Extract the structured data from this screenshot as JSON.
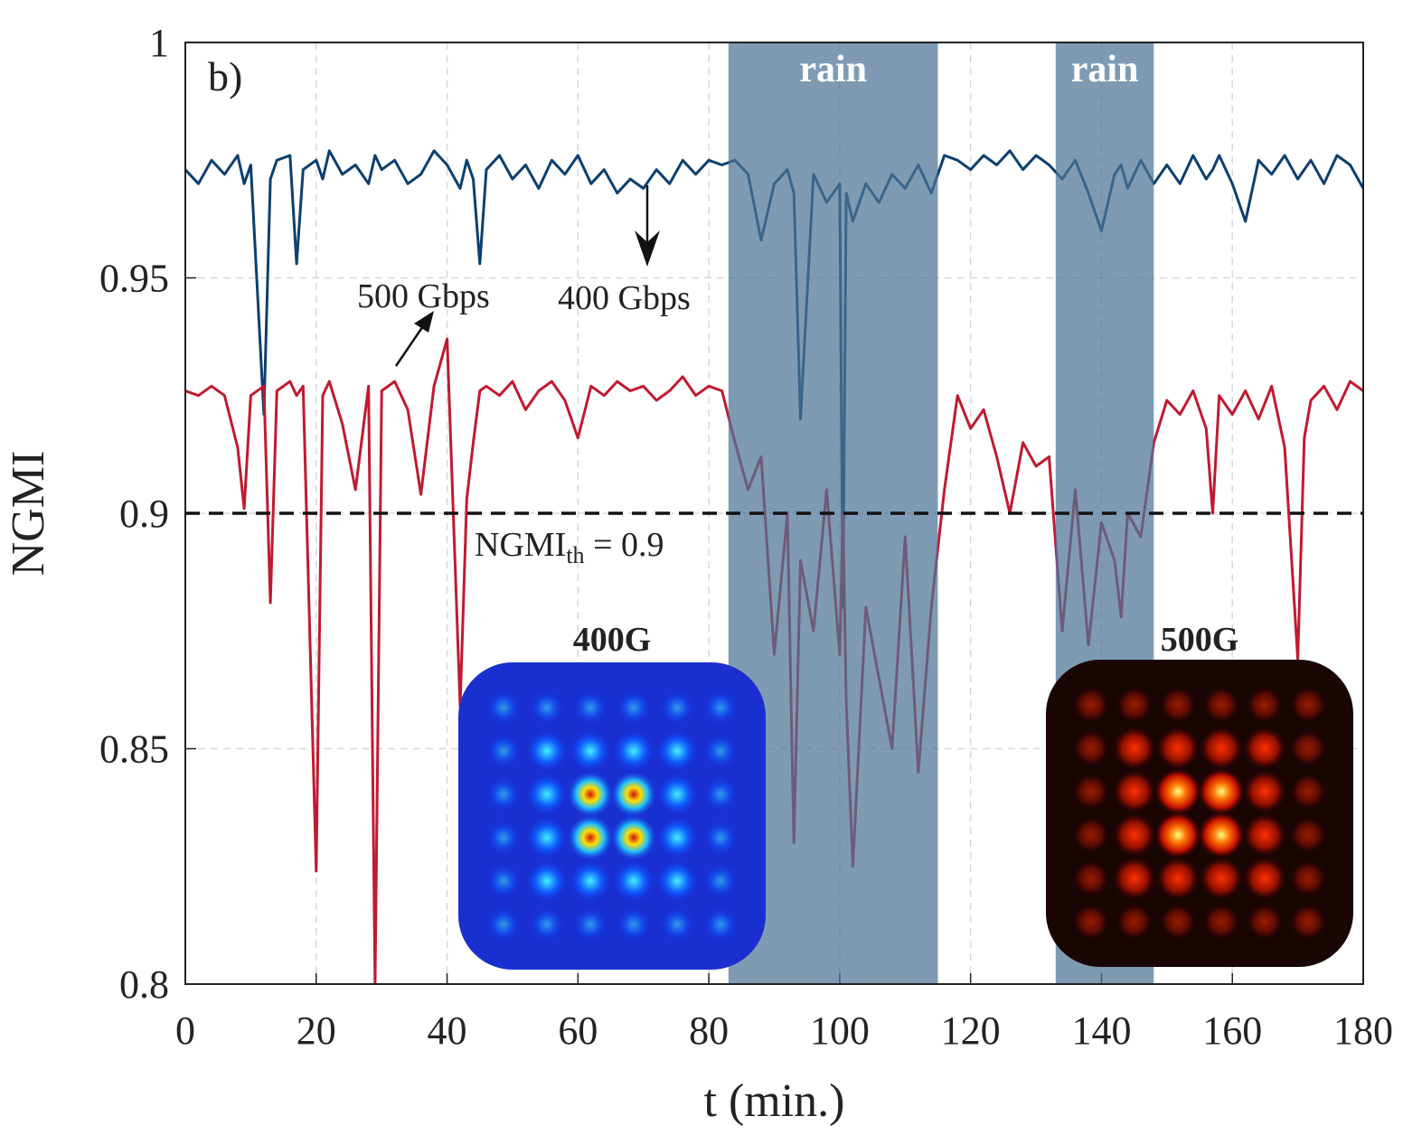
{
  "chart_data": {
    "type": "line",
    "panel_label": "b)",
    "xlabel": "t (min.)",
    "ylabel": "NGMI",
    "xlim": [
      0,
      180
    ],
    "xticks": [
      0,
      20,
      40,
      60,
      80,
      100,
      120,
      140,
      160,
      180
    ],
    "ylim": [
      0.8,
      1
    ],
    "yticks": [
      0.8,
      0.85,
      0.9,
      0.95,
      1
    ],
    "grid": true,
    "x": [
      0,
      2,
      4,
      6,
      8,
      9,
      10,
      12,
      13,
      14,
      16,
      17,
      18,
      20,
      21,
      22,
      24,
      26,
      28,
      29,
      30,
      32,
      34,
      36,
      38,
      40,
      42,
      43,
      44,
      45,
      46,
      48,
      50,
      52,
      54,
      56,
      58,
      60,
      62,
      64,
      66,
      68,
      70,
      72,
      74,
      76,
      78,
      80,
      82,
      84,
      86,
      88,
      90,
      92,
      93,
      94,
      96,
      98,
      100,
      100.5,
      101,
      102,
      104,
      106,
      108,
      110,
      112,
      114,
      116,
      118,
      120,
      122,
      124,
      126,
      128,
      130,
      132,
      134,
      136,
      138,
      140,
      142,
      143,
      144,
      146,
      148,
      150,
      152,
      154,
      156,
      157,
      158,
      160,
      162,
      164,
      166,
      168,
      170,
      171,
      172,
      174,
      176,
      178,
      180
    ],
    "series": [
      {
        "name": "400 Gbps",
        "color": "#0c3f6e",
        "values": [
          0.973,
          0.97,
          0.975,
          0.972,
          0.976,
          0.97,
          0.974,
          0.921,
          0.971,
          0.975,
          0.976,
          0.953,
          0.973,
          0.975,
          0.971,
          0.977,
          0.972,
          0.974,
          0.97,
          0.976,
          0.973,
          0.975,
          0.97,
          0.972,
          0.977,
          0.974,
          0.969,
          0.975,
          0.971,
          0.953,
          0.973,
          0.976,
          0.971,
          0.974,
          0.969,
          0.975,
          0.972,
          0.976,
          0.97,
          0.973,
          0.968,
          0.971,
          0.969,
          0.973,
          0.97,
          0.975,
          0.972,
          0.975,
          0.974,
          0.975,
          0.972,
          0.958,
          0.97,
          0.973,
          0.968,
          0.92,
          0.972,
          0.966,
          0.97,
          0.88,
          0.968,
          0.962,
          0.97,
          0.966,
          0.972,
          0.969,
          0.974,
          0.968,
          0.976,
          0.975,
          0.973,
          0.976,
          0.974,
          0.977,
          0.973,
          0.976,
          0.974,
          0.971,
          0.975,
          0.968,
          0.96,
          0.972,
          0.974,
          0.969,
          0.975,
          0.97,
          0.974,
          0.97,
          0.976,
          0.971,
          0.973,
          0.976,
          0.97,
          0.962,
          0.975,
          0.972,
          0.976,
          0.971,
          0.973,
          0.975,
          0.97,
          0.976,
          0.974,
          0.969
        ]
      },
      {
        "name": "500 Gbps",
        "color": "#c01a30",
        "values": [
          0.926,
          0.925,
          0.927,
          0.925,
          0.914,
          0.901,
          0.925,
          0.927,
          0.881,
          0.926,
          0.928,
          0.925,
          0.927,
          0.824,
          0.925,
          0.928,
          0.919,
          0.905,
          0.927,
          0.8,
          0.926,
          0.928,
          0.922,
          0.904,
          0.927,
          0.937,
          0.859,
          0.903,
          0.915,
          0.926,
          0.927,
          0.925,
          0.928,
          0.922,
          0.926,
          0.928,
          0.924,
          0.916,
          0.927,
          0.925,
          0.928,
          0.926,
          0.927,
          0.924,
          0.926,
          0.929,
          0.925,
          0.927,
          0.926,
          0.915,
          0.905,
          0.912,
          0.87,
          0.9,
          0.83,
          0.89,
          0.875,
          0.905,
          0.87,
          0.9,
          0.86,
          0.825,
          0.88,
          0.865,
          0.85,
          0.895,
          0.845,
          0.88,
          0.905,
          0.925,
          0.918,
          0.922,
          0.912,
          0.9,
          0.915,
          0.91,
          0.912,
          0.875,
          0.905,
          0.872,
          0.898,
          0.89,
          0.878,
          0.9,
          0.895,
          0.915,
          0.924,
          0.921,
          0.926,
          0.918,
          0.9,
          0.925,
          0.921,
          0.926,
          0.92,
          0.927,
          0.914,
          0.869,
          0.916,
          0.924,
          0.927,
          0.922,
          0.928,
          0.926
        ]
      }
    ],
    "shaded_regions": [
      {
        "label": "rain",
        "xlim": [
          83,
          115
        ],
        "color": "#4d7497"
      },
      {
        "label": "rain",
        "xlim": [
          133,
          148
        ],
        "color": "#4d7497"
      }
    ],
    "threshold": {
      "value": 0.9,
      "label": "NGMI",
      "subscript": "th",
      "suffix": " = 0.9"
    },
    "insets": [
      "400G",
      "500G"
    ]
  }
}
